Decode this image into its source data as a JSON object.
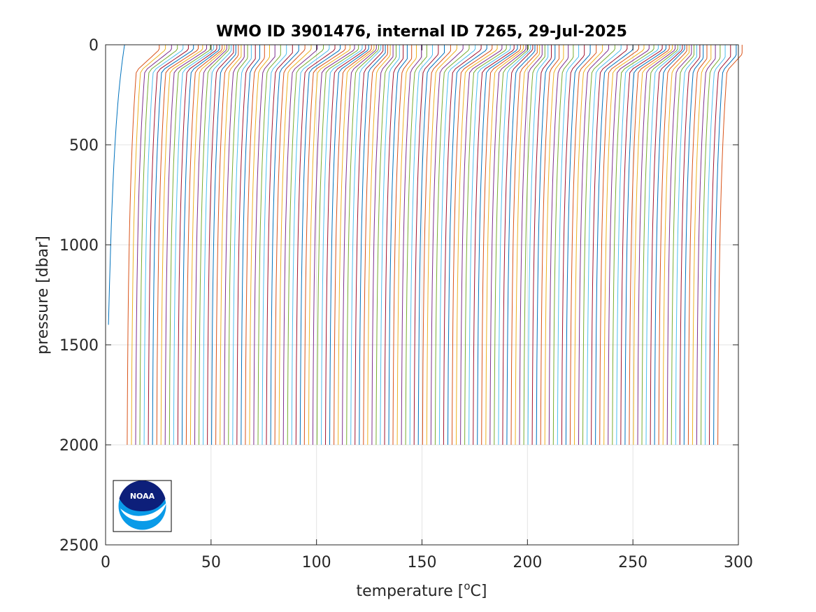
{
  "chart_data": {
    "type": "line",
    "title": "WMO ID 3901476, internal ID 7265, 29-Jul-2025",
    "xlabel_main": "temperature [",
    "xlabel_sup": "o",
    "xlabel_end": "C]",
    "ylabel": "pressure [dbar]",
    "xlim": [
      0,
      300
    ],
    "ylim": [
      0,
      2500
    ],
    "y_reversed": true,
    "xticks": [
      0,
      50,
      100,
      150,
      200,
      250,
      300
    ],
    "yticks": [
      0,
      500,
      1000,
      1500,
      2000,
      2500
    ],
    "grid": true,
    "legend": "none",
    "profile_count": 142,
    "profile_offset_step": 2,
    "first_profile_surface_temp": 9,
    "deep_temp_at_2000": 8,
    "max_pressure": 2000,
    "colors": [
      "#0072BD",
      "#D95319",
      "#EDB120",
      "#7E2F8E",
      "#77AC30",
      "#4DBEEE",
      "#A2142F"
    ],
    "logo": "noaa-logo",
    "logo_text": "NOAA"
  }
}
